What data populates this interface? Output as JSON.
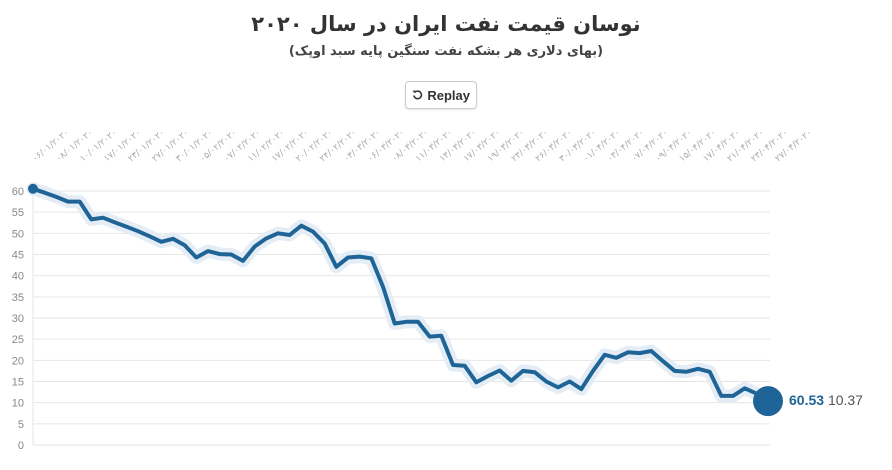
{
  "header": {
    "title": "نوسان قیمت نفت ایران در سال ۲۰۲۰",
    "subtitle": "(بهای دلاری هر بشکه نفت سنگین پایه سبد اوپک)",
    "replay_label": "Replay",
    "replay_icon": "replay-icon"
  },
  "colors": {
    "line": "#1f6496",
    "halo": "#e4edf5",
    "grid": "#e6e6e6"
  },
  "chart_data": {
    "type": "line",
    "title": "نوسان قیمت نفت ایران در سال ۲۰۲۰",
    "subtitle": "(بهای دلاری هر بشکه نفت سنگین پایه سبد اوپک)",
    "ylim": [
      0,
      60
    ],
    "yticks": [
      0,
      5,
      10,
      15,
      20,
      25,
      30,
      35,
      40,
      45,
      50,
      55,
      60
    ],
    "grid": true,
    "xtick_labels": [
      "۰۶/۰۱/۲۰۲۰",
      "۰۸/۰۱/۲۰۲۰",
      "۱۰/۰۱/۲۰۲۰",
      "۱۷/۰۱/۲۰۲۰",
      "۲۳/۰۱/۲۰۲۰",
      "۲۷/۰۱/۲۰۲۰",
      "۳۰/۰۱/۲۰۲۰",
      "۰۵/۰۲/۲۰۲۰",
      "۰۷/۰۲/۲۰۲۰",
      "۱۱/۰۲/۲۰۲۰",
      "۱۷/۰۲/۲۰۲۰",
      "۲۰/۰۲/۲۰۲۰",
      "۲۴/۰۲/۲۰۲۰",
      "۰۳/۰۳/۲۰۲۰",
      "۰۶/۰۳/۲۰۲۰",
      "۰۸/۰۳/۲۰۲۰",
      "۱۱/۰۳/۲۰۲۰",
      "۱۳/۰۳/۲۰۲۰",
      "۱۷/۰۳/۲۰۲۰",
      "۱۹/۰۳/۲۰۲۰",
      "۲۳/۰۳/۲۰۲۰",
      "۲۶/۰۳/۲۰۲۰",
      "۳۰/۰۳/۲۰۲۰",
      "۰۱/۰۴/۲۰۲۰",
      "۰۳/۰۴/۲۰۲۰",
      "۰۷/۰۴/۲۰۲۰",
      "۰۹/۰۴/۲۰۲۰",
      "۱۵/۰۴/۲۰۲۰",
      "۱۷/۰۴/۲۰۲۰",
      "۲۱/۰۴/۲۰۲۰",
      "۲۳/۰۴/۲۰۲۰",
      "۲۷/۰۴/۲۰۲۰"
    ],
    "values": [
      60.53,
      59.6,
      58.6,
      57.5,
      57.5,
      53.3,
      53.7,
      52.6,
      51.6,
      50.5,
      49.3,
      48,
      48.7,
      47.2,
      44.3,
      45.8,
      45.1,
      45,
      43.5,
      46.9,
      48.8,
      50,
      49.6,
      51.8,
      50.4,
      47.6,
      42.1,
      44.3,
      44.5,
      44.1,
      37.4,
      28.7,
      29.1,
      29.1,
      25.6,
      25.8,
      18.9,
      18.7,
      14.8,
      16.3,
      17.6,
      15.2,
      17.5,
      17.2,
      15,
      13.6,
      15,
      13.2,
      17.5,
      21.3,
      20.6,
      21.9,
      21.7,
      22.2,
      19.8,
      17.5,
      17.3,
      18,
      17.3,
      11.6,
      11.6,
      13.4,
      12.2,
      10.37
    ],
    "end_label": {
      "start_value": "60.53",
      "current_value": "10.37"
    }
  }
}
